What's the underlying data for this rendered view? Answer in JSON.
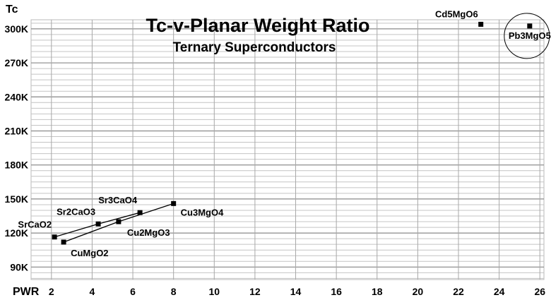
{
  "chart_data": {
    "type": "scatter",
    "title": "Tc-v-Planar Weight Ratio",
    "subtitle": "Ternary Superconductors",
    "xlabel": "PWR",
    "ylabel": "Tc",
    "xlim": [
      1,
      26.2
    ],
    "ylim": [
      79,
      308
    ],
    "x_ticks": [
      2,
      4,
      6,
      8,
      10,
      12,
      14,
      16,
      18,
      20,
      22,
      24,
      26
    ],
    "y_ticks": [
      {
        "value": 90,
        "label": "90K"
      },
      {
        "value": 120,
        "label": "120K"
      },
      {
        "value": 150,
        "label": "150K"
      },
      {
        "value": 180,
        "label": "180K"
      },
      {
        "value": 210,
        "label": "210K"
      },
      {
        "value": 240,
        "label": "240K"
      },
      {
        "value": 270,
        "label": "270K"
      },
      {
        "value": 300,
        "label": "300K"
      }
    ],
    "grid": true,
    "points": [
      {
        "name": "SrCaO2",
        "x": 2.15,
        "y": 116.5
      },
      {
        "name": "Sr2CaO3",
        "x": 4.3,
        "y": 128
      },
      {
        "name": "Sr3CaO4",
        "x": 6.35,
        "y": 138
      },
      {
        "name": "CuMgO2",
        "x": 2.6,
        "y": 112
      },
      {
        "name": "Cu2MgO3",
        "x": 5.3,
        "y": 130
      },
      {
        "name": "Cu3MgO4",
        "x": 8.0,
        "y": 146
      },
      {
        "name": "Cd5MgO6",
        "x": 23.1,
        "y": 304
      },
      {
        "name": "Pb3MgO5",
        "x": 25.5,
        "y": 302.5
      }
    ],
    "lines": [
      [
        "SrCaO2",
        "Sr2CaO3",
        "Sr3CaO4"
      ],
      [
        "CuMgO2",
        "Cu2MgO3",
        "Cu3MgO4"
      ]
    ],
    "highlight": "Pb3MgO5"
  }
}
